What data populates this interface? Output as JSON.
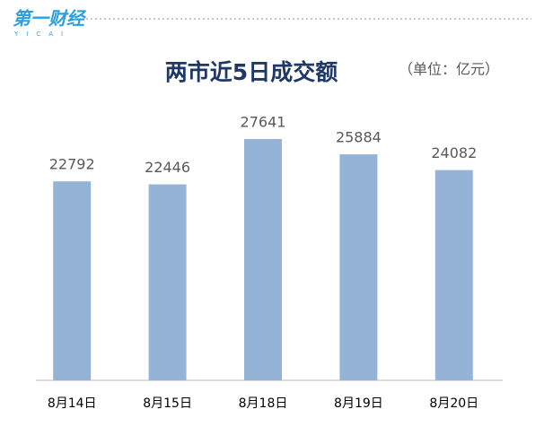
{
  "logo": {
    "name": "第一财经",
    "subtitle": "YICAI"
  },
  "chart_data": {
    "type": "bar",
    "title": "两市近5日成交额",
    "unit": "（单位：亿元）",
    "categories": [
      "8月14日",
      "8月15日",
      "8月18日",
      "8月19日",
      "8月20日"
    ],
    "values": [
      22792,
      22446,
      27641,
      25884,
      24082
    ],
    "color": "#95b3d7"
  }
}
